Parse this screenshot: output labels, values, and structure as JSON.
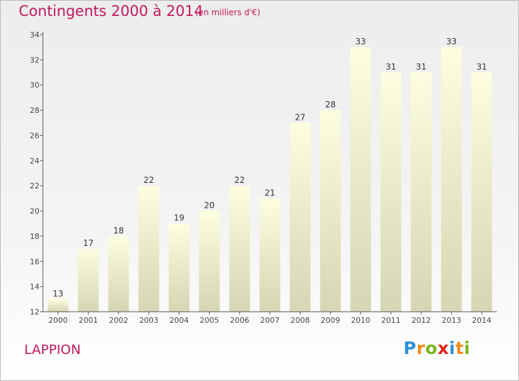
{
  "header": {
    "title": "Contingents 2000 à 2014",
    "unit": "(en milliers d'€)"
  },
  "footer": {
    "place": "LAPPION",
    "logo": {
      "text": "Proxiti",
      "colors": [
        "#2f8fd8",
        "#f28c1a",
        "#7ab51d",
        "#e2231a"
      ]
    }
  },
  "chart_data": {
    "type": "bar",
    "title": "Contingents 2000 à 2014",
    "subtitle": "(en milliers d'€)",
    "xlabel": "",
    "ylabel": "",
    "categories": [
      "2000",
      "2001",
      "2002",
      "2003",
      "2004",
      "2005",
      "2006",
      "2007",
      "2008",
      "2009",
      "2010",
      "2011",
      "2012",
      "2013",
      "2014"
    ],
    "values": [
      13,
      17,
      18,
      22,
      19,
      20,
      22,
      21,
      27,
      28,
      33,
      31,
      31,
      33,
      31
    ],
    "ylim": [
      12,
      34
    ],
    "yticks": [
      12,
      14,
      16,
      18,
      20,
      22,
      24,
      26,
      28,
      30,
      32,
      34
    ],
    "grid": false,
    "legend": "none",
    "colors": {
      "bar_top": "#fdfde0",
      "bar_bottom": "#d6d6b4",
      "axis": "#555555",
      "labels": "#333333"
    }
  }
}
